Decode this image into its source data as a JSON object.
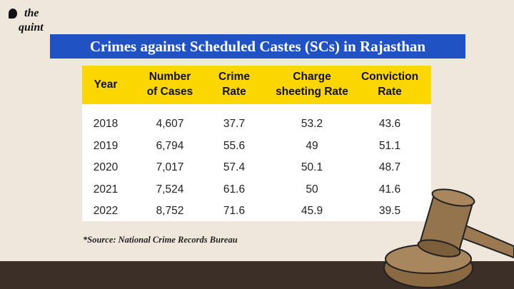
{
  "logo": {
    "line1": "the",
    "line2": "quint"
  },
  "title": "Crimes against Scheduled Castes (SCs) in Rajasthan",
  "chart_data": {
    "type": "table",
    "title": "Crimes against Scheduled Castes (SCs) in Rajasthan",
    "columns": [
      [
        "Year"
      ],
      [
        "Number",
        "of Cases"
      ],
      [
        "Crime",
        "Rate"
      ],
      [
        "Charge",
        "sheeting Rate"
      ],
      [
        "Conviction",
        "Rate"
      ]
    ],
    "rows": [
      [
        "2018",
        "4,607",
        "37.7",
        "53.2",
        "43.6"
      ],
      [
        "2019",
        "6,794",
        "55.6",
        "49",
        "51.1"
      ],
      [
        "2020",
        "7,017",
        "57.4",
        "50.1",
        "48.7"
      ],
      [
        "2021",
        "7,524",
        "61.6",
        "50",
        "41.6"
      ],
      [
        "2022",
        "8,752",
        "71.6",
        "45.9",
        "39.5"
      ]
    ]
  },
  "source": "*Source: National Crime Records Bureau",
  "colors": {
    "title_bg": "#2152c4",
    "header_bg": "#fbd600",
    "background": "#efe7dc"
  }
}
